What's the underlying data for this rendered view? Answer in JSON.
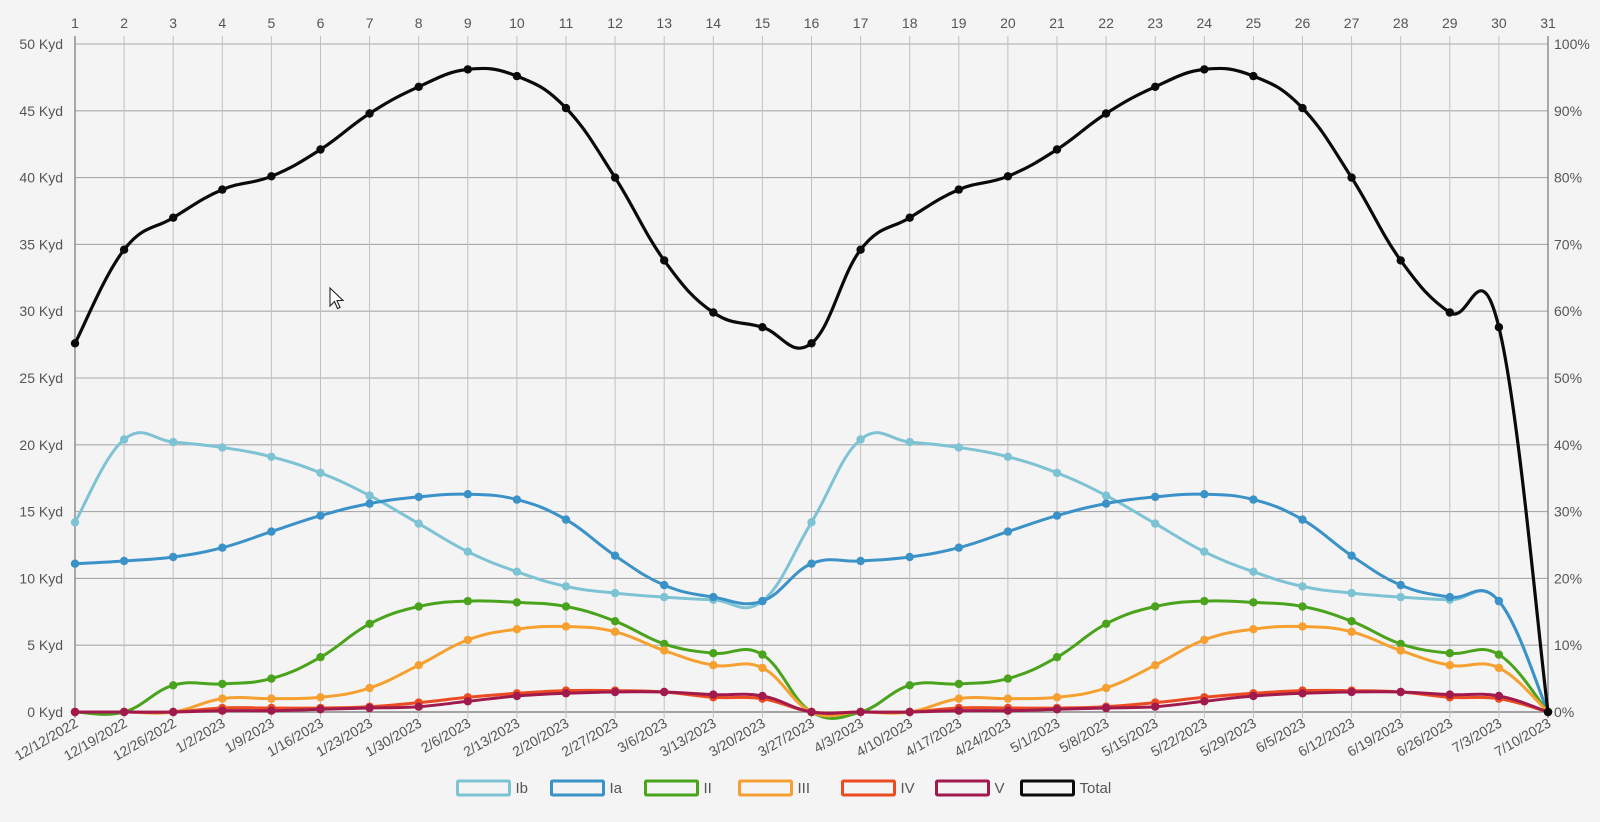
{
  "chart_data": {
    "type": "line",
    "x_dates": [
      "12/12/2022",
      "12/19/2022",
      "12/26/2022",
      "1/2/2023",
      "1/9/2023",
      "1/16/2023",
      "1/23/2023",
      "1/30/2023",
      "2/6/2023",
      "2/13/2023",
      "2/20/2023",
      "2/27/2023",
      "3/6/2023",
      "3/13/2023",
      "3/20/2023",
      "3/27/2023",
      "4/3/2023",
      "4/10/2023",
      "4/17/2023",
      "4/24/2023",
      "5/1/2023",
      "5/8/2023",
      "5/15/2023",
      "5/22/2023",
      "5/29/2023",
      "6/5/2023",
      "6/12/2023",
      "6/19/2023",
      "6/26/2023",
      "7/3/2023",
      "7/10/2023"
    ],
    "x_index": [
      "1",
      "2",
      "3",
      "4",
      "5",
      "6",
      "7",
      "8",
      "9",
      "10",
      "11",
      "12",
      "13",
      "14",
      "15",
      "16",
      "17",
      "18",
      "19",
      "20",
      "21",
      "22",
      "23",
      "24",
      "25",
      "26",
      "27",
      "28",
      "29",
      "30",
      "31"
    ],
    "y_left_ticks": [
      "0 Kyd",
      "5 Kyd",
      "10 Kyd",
      "15 Kyd",
      "20 Kyd",
      "25 Kyd",
      "30 Kyd",
      "35 Kyd",
      "40 Kyd",
      "45 Kyd",
      "50 Kyd"
    ],
    "y_right_ticks": [
      "0%",
      "10%",
      "20%",
      "30%",
      "40%",
      "50%",
      "60%",
      "70%",
      "80%",
      "90%",
      "100%"
    ],
    "ylim": [
      0,
      50
    ],
    "grid": true,
    "legend_position": "bottom",
    "series": [
      {
        "name": "Ib",
        "color": "#7dc3d4",
        "values": [
          14.2,
          20.4,
          20.2,
          19.8,
          19.1,
          17.9,
          16.2,
          14.1,
          12.0,
          10.5,
          9.4,
          8.9,
          8.6,
          8.4,
          8.3,
          14.2,
          20.4,
          20.2,
          19.8,
          19.1,
          17.9,
          16.2,
          14.1,
          12.0,
          10.5,
          9.4,
          8.9,
          8.6,
          8.4,
          8.3,
          0
        ]
      },
      {
        "name": "Ia",
        "color": "#3a92c8",
        "values": [
          11.1,
          11.3,
          11.6,
          12.3,
          13.5,
          14.7,
          15.6,
          16.1,
          16.3,
          15.9,
          14.4,
          11.7,
          9.5,
          8.6,
          8.3,
          11.1,
          11.3,
          11.6,
          12.3,
          13.5,
          14.7,
          15.6,
          16.1,
          16.3,
          15.9,
          14.4,
          11.7,
          9.5,
          8.6,
          8.3,
          0
        ]
      },
      {
        "name": "II",
        "color": "#4aa31c",
        "values": [
          0,
          0,
          2.0,
          2.1,
          2.5,
          4.1,
          6.6,
          7.9,
          8.3,
          8.2,
          7.9,
          6.8,
          5.1,
          4.4,
          4.3,
          0,
          0,
          2.0,
          2.1,
          2.5,
          4.1,
          6.6,
          7.9,
          8.3,
          8.2,
          7.9,
          6.8,
          5.1,
          4.4,
          4.3,
          0
        ]
      },
      {
        "name": "III",
        "color": "#f5a030",
        "values": [
          0,
          0,
          0,
          1.0,
          1.0,
          1.1,
          1.8,
          3.5,
          5.4,
          6.2,
          6.4,
          6.0,
          4.6,
          3.5,
          3.3,
          0,
          0,
          0,
          1.0,
          1.0,
          1.1,
          1.8,
          3.5,
          5.4,
          6.2,
          6.4,
          6.0,
          4.6,
          3.5,
          3.3,
          0
        ]
      },
      {
        "name": "IV",
        "color": "#ec4b22",
        "values": [
          0,
          0,
          0,
          0.3,
          0.3,
          0.3,
          0.4,
          0.7,
          1.1,
          1.4,
          1.6,
          1.6,
          1.5,
          1.1,
          1.0,
          0,
          0,
          0,
          0.3,
          0.3,
          0.3,
          0.4,
          0.7,
          1.1,
          1.4,
          1.6,
          1.6,
          1.5,
          1.1,
          1.0,
          0
        ]
      },
      {
        "name": "V",
        "color": "#a01a4e",
        "values": [
          0,
          0,
          0,
          0.1,
          0.1,
          0.2,
          0.3,
          0.4,
          0.8,
          1.2,
          1.4,
          1.5,
          1.5,
          1.3,
          1.2,
          0,
          0,
          0,
          0.1,
          0.1,
          0.2,
          0.3,
          0.4,
          0.8,
          1.2,
          1.4,
          1.5,
          1.5,
          1.3,
          1.2,
          0
        ]
      },
      {
        "name": "Total",
        "color": "#0a0a0a",
        "values": [
          27.6,
          34.6,
          37.0,
          39.1,
          40.1,
          42.1,
          44.8,
          46.8,
          48.1,
          47.6,
          45.2,
          40.0,
          33.8,
          29.9,
          28.8,
          27.6,
          34.6,
          37.0,
          39.1,
          40.1,
          42.1,
          44.8,
          46.8,
          48.1,
          47.6,
          45.2,
          40.0,
          33.8,
          29.9,
          28.8,
          0
        ]
      }
    ]
  }
}
